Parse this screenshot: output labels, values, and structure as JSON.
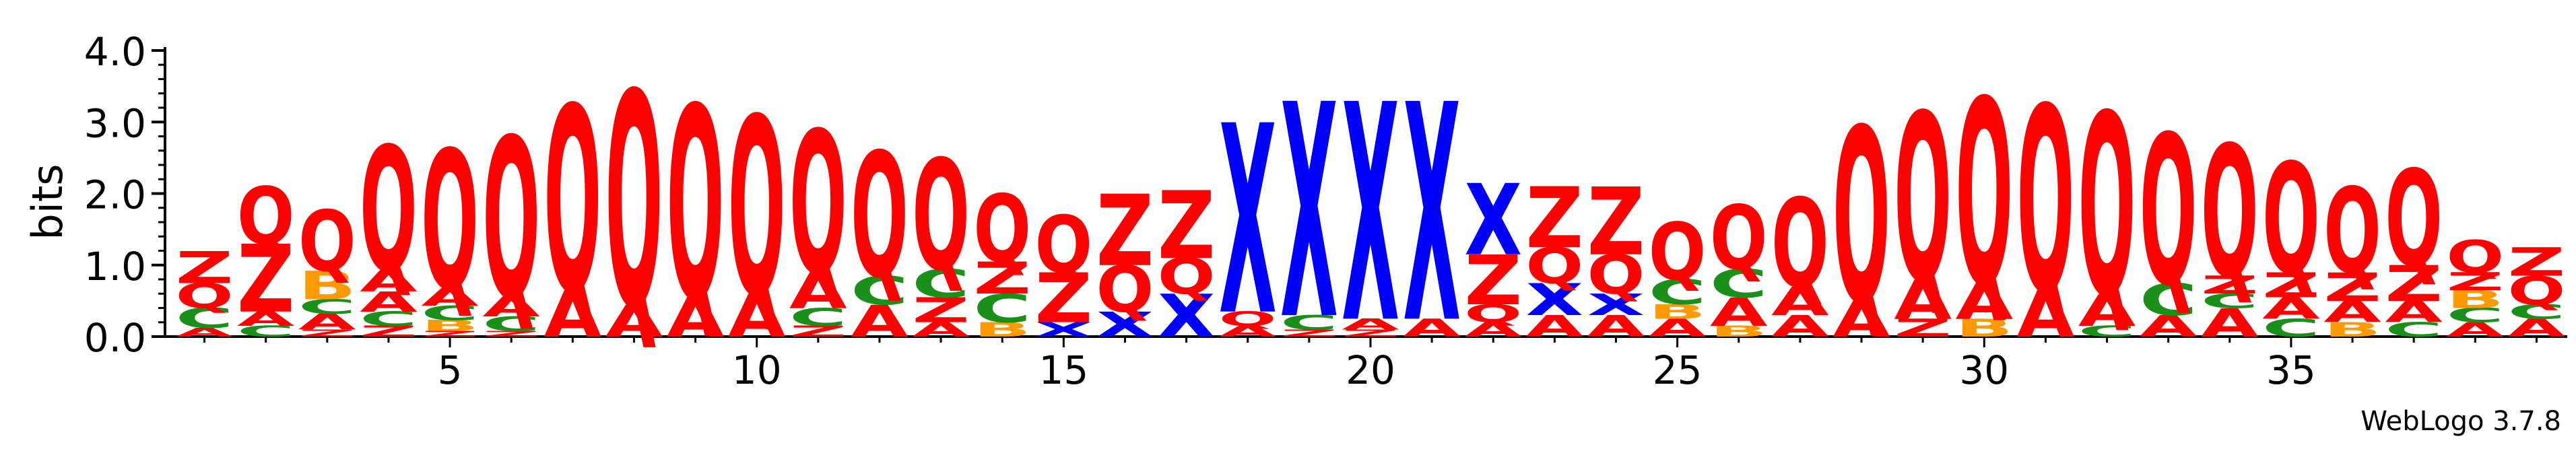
{
  "chart_data": {
    "type": "sequence-logo",
    "title": "",
    "xlabel": "",
    "ylabel": "bits",
    "ylim": [
      0,
      4.0
    ],
    "y_ticks": [
      "0.0",
      "1.0",
      "2.0",
      "3.0",
      "4.0"
    ],
    "x_ticks": [
      5,
      10,
      15,
      20,
      25,
      30,
      35
    ],
    "colors": {
      "Q": "#ff0000",
      "Z": "#ff0000",
      "A": "#ff0000",
      "C": "#1a8f1a",
      "B": "#ff9900",
      "X": "#0000ff",
      "E": "#ff0000"
    },
    "positions": [
      {
        "pos": 1,
        "stack": [
          [
            "A",
            0.12
          ],
          [
            "C",
            0.28
          ],
          [
            "Q",
            0.35
          ],
          [
            "Z",
            0.45
          ]
        ]
      },
      {
        "pos": 2,
        "stack": [
          [
            "C",
            0.15
          ],
          [
            "A",
            0.2
          ],
          [
            "Z",
            0.95
          ],
          [
            "Q",
            0.8
          ]
        ]
      },
      {
        "pos": 3,
        "stack": [
          [
            "Z",
            0.1
          ],
          [
            "A",
            0.22
          ],
          [
            "C",
            0.2
          ],
          [
            "B",
            0.4
          ],
          [
            "Q",
            0.85
          ]
        ]
      },
      {
        "pos": 4,
        "stack": [
          [
            "Z",
            0.15
          ],
          [
            "C",
            0.2
          ],
          [
            "A",
            0.28
          ],
          [
            "A",
            0.3
          ],
          [
            "Q",
            1.75
          ]
        ]
      },
      {
        "pos": 5,
        "stack": [
          [
            "Z",
            0.08
          ],
          [
            "B",
            0.15
          ],
          [
            "C",
            0.2
          ],
          [
            "A",
            0.25
          ],
          [
            "Q",
            1.95
          ]
        ]
      },
      {
        "pos": 6,
        "stack": [
          [
            "Z",
            0.08
          ],
          [
            "C",
            0.2
          ],
          [
            "A",
            0.28
          ],
          [
            "Q",
            2.25
          ]
        ]
      },
      {
        "pos": 7,
        "stack": [
          [
            "A",
            0.65
          ],
          [
            "Q",
            2.6
          ]
        ]
      },
      {
        "pos": 8,
        "stack": [
          [
            "A",
            0.45
          ],
          [
            "Q",
            3.0
          ]
        ]
      },
      {
        "pos": 9,
        "stack": [
          [
            "A",
            0.55
          ],
          [
            "Q",
            2.7
          ]
        ]
      },
      {
        "pos": 10,
        "stack": [
          [
            "A",
            0.6
          ],
          [
            "Q",
            2.5
          ]
        ]
      },
      {
        "pos": 11,
        "stack": [
          [
            "Z",
            0.15
          ],
          [
            "C",
            0.25
          ],
          [
            "A",
            0.5
          ],
          [
            "Q",
            2.0
          ]
        ]
      },
      {
        "pos": 12,
        "stack": [
          [
            "A",
            0.45
          ],
          [
            "C",
            0.4
          ],
          [
            "Q",
            1.75
          ]
        ]
      },
      {
        "pos": 13,
        "stack": [
          [
            "A",
            0.2
          ],
          [
            "Z",
            0.35
          ],
          [
            "C",
            0.4
          ],
          [
            "Q",
            1.55
          ]
        ]
      },
      {
        "pos": 14,
        "stack": [
          [
            "B",
            0.2
          ],
          [
            "C",
            0.4
          ],
          [
            "Z",
            0.45
          ],
          [
            "Q",
            0.95
          ]
        ]
      },
      {
        "pos": 15,
        "stack": [
          [
            "X",
            0.2
          ],
          [
            "Z",
            0.7
          ],
          [
            "Q",
            0.8
          ]
        ]
      },
      {
        "pos": 16,
        "stack": [
          [
            "X",
            0.35
          ],
          [
            "Q",
            0.65
          ],
          [
            "Z",
            1.0
          ]
        ]
      },
      {
        "pos": 17,
        "stack": [
          [
            "X",
            0.6
          ],
          [
            "Q",
            0.5
          ],
          [
            "Z",
            0.95
          ]
        ]
      },
      {
        "pos": 18,
        "stack": [
          [
            "A",
            0.15
          ],
          [
            "Q",
            0.2
          ],
          [
            "X",
            2.65
          ]
        ]
      },
      {
        "pos": 19,
        "stack": [
          [
            "Z",
            0.1
          ],
          [
            "C",
            0.2
          ],
          [
            "X",
            3.0
          ]
        ]
      },
      {
        "pos": 20,
        "stack": [
          [
            "Z",
            0.1
          ],
          [
            "A",
            0.15
          ],
          [
            "X",
            3.05
          ]
        ]
      },
      {
        "pos": 21,
        "stack": [
          [
            "A",
            0.25
          ],
          [
            "X",
            3.05
          ]
        ]
      },
      {
        "pos": 22,
        "stack": [
          [
            "A",
            0.2
          ],
          [
            "Q",
            0.25
          ],
          [
            "Z",
            0.7
          ],
          [
            "X",
            1.0
          ]
        ]
      },
      {
        "pos": 23,
        "stack": [
          [
            "A",
            0.3
          ],
          [
            "X",
            0.45
          ],
          [
            "Q",
            0.5
          ],
          [
            "Z",
            0.85
          ]
        ]
      },
      {
        "pos": 24,
        "stack": [
          [
            "A",
            0.3
          ],
          [
            "X",
            0.3
          ],
          [
            "Q",
            0.55
          ],
          [
            "Z",
            0.95
          ]
        ]
      },
      {
        "pos": 25,
        "stack": [
          [
            "A",
            0.25
          ],
          [
            "B",
            0.2
          ],
          [
            "C",
            0.35
          ],
          [
            "Q",
            0.8
          ]
        ]
      },
      {
        "pos": 26,
        "stack": [
          [
            "B",
            0.15
          ],
          [
            "A",
            0.4
          ],
          [
            "C",
            0.4
          ],
          [
            "Q",
            0.9
          ]
        ]
      },
      {
        "pos": 27,
        "stack": [
          [
            "A",
            0.3
          ],
          [
            "A",
            0.4
          ],
          [
            "Q",
            1.25
          ]
        ]
      },
      {
        "pos": 28,
        "stack": [
          [
            "A",
            0.5
          ],
          [
            "Q",
            2.45
          ]
        ]
      },
      {
        "pos": 29,
        "stack": [
          [
            "Z",
            0.25
          ],
          [
            "A",
            0.55
          ],
          [
            "Q",
            2.35
          ]
        ]
      },
      {
        "pos": 30,
        "stack": [
          [
            "B",
            0.25
          ],
          [
            "A",
            0.5
          ],
          [
            "Q",
            2.6
          ]
        ]
      },
      {
        "pos": 31,
        "stack": [
          [
            "A",
            0.65
          ],
          [
            "Q",
            2.6
          ]
        ]
      },
      {
        "pos": 32,
        "stack": [
          [
            "C",
            0.15
          ],
          [
            "A",
            0.45
          ],
          [
            "Q",
            2.55
          ]
        ]
      },
      {
        "pos": 33,
        "stack": [
          [
            "A",
            0.3
          ],
          [
            "C",
            0.45
          ],
          [
            "Q",
            2.1
          ]
        ]
      },
      {
        "pos": 34,
        "stack": [
          [
            "A",
            0.4
          ],
          [
            "C",
            0.2
          ],
          [
            "Z",
            0.25
          ],
          [
            "Q",
            1.85
          ]
        ]
      },
      {
        "pos": 35,
        "stack": [
          [
            "C",
            0.25
          ],
          [
            "A",
            0.3
          ],
          [
            "Z",
            0.35
          ],
          [
            "Q",
            1.55
          ]
        ]
      },
      {
        "pos": 36,
        "stack": [
          [
            "B",
            0.2
          ],
          [
            "A",
            0.3
          ],
          [
            "Z",
            0.4
          ],
          [
            "Q",
            1.2
          ]
        ]
      },
      {
        "pos": 37,
        "stack": [
          [
            "C",
            0.2
          ],
          [
            "A",
            0.3
          ],
          [
            "Z",
            0.5
          ],
          [
            "Q",
            1.35
          ]
        ]
      },
      {
        "pos": 38,
        "stack": [
          [
            "A",
            0.2
          ],
          [
            "C",
            0.2
          ],
          [
            "B",
            0.25
          ],
          [
            "Z",
            0.25
          ],
          [
            "Q",
            0.45
          ]
        ]
      },
      {
        "pos": 39,
        "stack": [
          [
            "A",
            0.25
          ],
          [
            "C",
            0.2
          ],
          [
            "Q",
            0.4
          ],
          [
            "Z",
            0.4
          ]
        ]
      }
    ]
  },
  "credit": "WebLogo 3.7.8"
}
